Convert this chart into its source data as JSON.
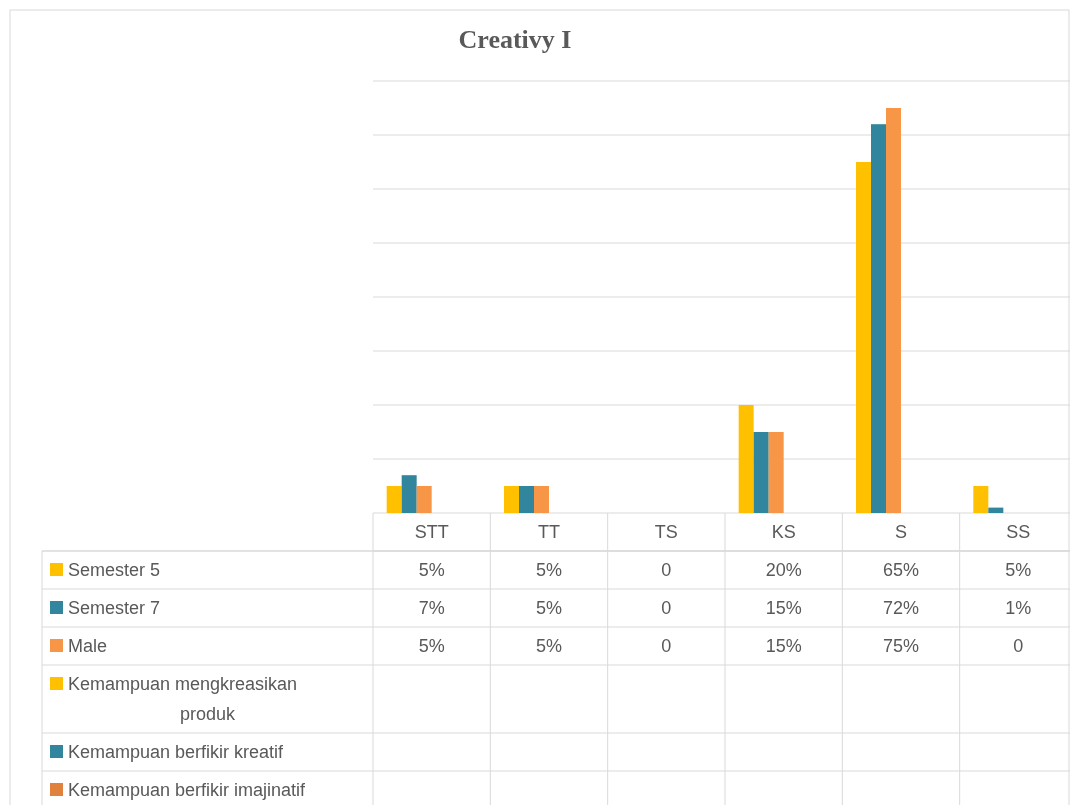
{
  "chart_data": {
    "type": "bar",
    "title": "Creativy I",
    "categories": [
      "STT",
      "TT",
      "TS",
      "KS",
      "S",
      "SS"
    ],
    "series": [
      {
        "name": "Semester 5",
        "color": "#ffc000",
        "values": [
          5,
          5,
          0,
          20,
          65,
          5
        ],
        "value_labels": [
          "5%",
          "5%",
          "0",
          "20%",
          "65%",
          "5%"
        ]
      },
      {
        "name": "Semester 7",
        "color": "#31859c",
        "values": [
          7,
          5,
          0,
          15,
          72,
          1
        ],
        "value_labels": [
          "7%",
          "5%",
          "0",
          "15%",
          "72%",
          "1%"
        ]
      },
      {
        "name": "Male",
        "color": "#f79646",
        "values": [
          5,
          5,
          0,
          15,
          75,
          0
        ],
        "value_labels": [
          "5%",
          "5%",
          "0",
          "15%",
          "75%",
          "0"
        ]
      },
      {
        "name": "Kemampuan mengkreasikan produk",
        "color": "#ffc000",
        "values": [
          null,
          null,
          null,
          null,
          null,
          null
        ]
      },
      {
        "name": "Kemampuan berfikir kreatif",
        "color": "#31859c",
        "values": [
          null,
          null,
          null,
          null,
          null,
          null
        ]
      },
      {
        "name": "Kemampuan berfikir imajinatif",
        "color": "#e0823d",
        "values": [
          null,
          null,
          null,
          null,
          null,
          null
        ]
      }
    ],
    "ylim": [
      0,
      80
    ],
    "yticks": [
      {
        "value": 0,
        "label": null
      },
      {
        "value": 10,
        "label": null
      },
      {
        "value": 20,
        "label": null
      },
      {
        "value": 30,
        "label": null
      },
      {
        "value": 40,
        "label": null
      },
      {
        "value": 50,
        "label": null
      },
      {
        "value": 60,
        "label": null
      },
      {
        "value": 70,
        "label": null
      },
      {
        "value": 80,
        "label": null
      }
    ],
    "grid": "y",
    "tick_labels": "x",
    "legend": "bottom left"
  }
}
